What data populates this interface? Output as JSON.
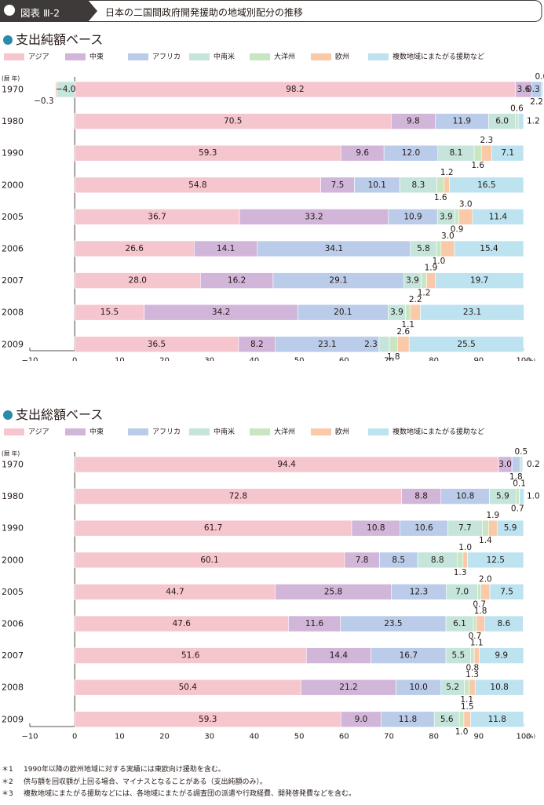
{
  "header": {
    "label": "図表 Ⅲ-2",
    "title": "日本の二国間政府開発援助の地域別配分の推移"
  },
  "colors": {
    "header_bg": "#3e3a39",
    "section_dot": "#2a8aa8",
    "series": [
      "#f6c6cf",
      "#d2b6d9",
      "#bacce9",
      "#c5e5dc",
      "#c9e6c3",
      "#f9c9a8",
      "#bde3f0"
    ]
  },
  "chart_data": [
    {
      "type": "bar",
      "orientation": "horizontal",
      "stacked": true,
      "title": "支出純額ベース",
      "ylabel": "(暦 年)",
      "xunit": "(%)",
      "xlim": [
        -10,
        100
      ],
      "xticks": [
        -10,
        0,
        10,
        20,
        30,
        40,
        50,
        60,
        70,
        80,
        90,
        100
      ],
      "legend_position": "top",
      "categories": [
        "1970",
        "1980",
        "1990",
        "2000",
        "2005",
        "2006",
        "2007",
        "2008",
        "2009"
      ],
      "series": [
        {
          "name": "アジア",
          "values": [
            98.2,
            70.5,
            59.3,
            54.8,
            36.7,
            26.6,
            28.0,
            15.5,
            36.5
          ]
        },
        {
          "name": "中東",
          "values": [
            3.6,
            9.8,
            9.6,
            7.5,
            33.2,
            14.1,
            16.2,
            34.2,
            8.2
          ]
        },
        {
          "name": "アフリカ",
          "values": [
            2.2,
            11.9,
            12.0,
            10.1,
            10.9,
            34.1,
            29.1,
            20.1,
            23.1
          ]
        },
        {
          "name": "中南米",
          "values": [
            -4.0,
            6.0,
            8.1,
            8.3,
            3.9,
            5.8,
            3.9,
            3.9,
            2.3
          ]
        },
        {
          "name": "大洋州",
          "values": [
            0.0,
            0.6,
            1.6,
            1.6,
            0.9,
            1.0,
            1.2,
            1.1,
            1.8
          ]
        },
        {
          "name": "欧州",
          "values": [
            -0.3,
            0,
            2.3,
            1.2,
            3.0,
            3.0,
            1.9,
            2.2,
            2.6
          ]
        },
        {
          "name": "複数地域にまたがる援助など",
          "values": [
            0.3,
            1.2,
            7.1,
            16.5,
            11.4,
            15.4,
            19.7,
            23.1,
            25.5
          ]
        }
      ],
      "labels": [
        [
          {
            "s": 3,
            "text": "−4.0",
            "pos": "in"
          },
          {
            "s": 0,
            "text": "98.2",
            "pos": "in"
          },
          {
            "s": 1,
            "text": "3.6",
            "pos": "in"
          },
          {
            "s": 4,
            "text": "0.0",
            "pos": "above"
          },
          {
            "s": 2,
            "text": "2.2",
            "pos": "below"
          },
          {
            "s": 6,
            "text": "0.3",
            "pos": "right"
          },
          {
            "s": 5,
            "text": "−0.3",
            "pos": "below-left"
          }
        ],
        [
          {
            "s": 0,
            "text": "70.5",
            "pos": "in"
          },
          {
            "s": 1,
            "text": "9.8",
            "pos": "in"
          },
          {
            "s": 2,
            "text": "11.9",
            "pos": "in"
          },
          {
            "s": 3,
            "text": "6.0",
            "pos": "in"
          },
          {
            "s": 4,
            "text": "0.6",
            "pos": "above"
          },
          {
            "s": 6,
            "text": "1.2",
            "pos": "right"
          }
        ],
        [
          {
            "s": 0,
            "text": "59.3",
            "pos": "in"
          },
          {
            "s": 1,
            "text": "9.6",
            "pos": "in"
          },
          {
            "s": 2,
            "text": "12.0",
            "pos": "in"
          },
          {
            "s": 3,
            "text": "8.1",
            "pos": "in"
          },
          {
            "s": 5,
            "text": "2.3",
            "pos": "above"
          },
          {
            "s": 4,
            "text": "1.6",
            "pos": "below"
          },
          {
            "s": 6,
            "text": "7.1",
            "pos": "in"
          }
        ],
        [
          {
            "s": 0,
            "text": "54.8",
            "pos": "in"
          },
          {
            "s": 1,
            "text": "7.5",
            "pos": "in"
          },
          {
            "s": 2,
            "text": "10.1",
            "pos": "in"
          },
          {
            "s": 3,
            "text": "8.3",
            "pos": "in"
          },
          {
            "s": 5,
            "text": "1.2",
            "pos": "above"
          },
          {
            "s": 4,
            "text": "1.6",
            "pos": "below"
          },
          {
            "s": 6,
            "text": "16.5",
            "pos": "in"
          }
        ],
        [
          {
            "s": 0,
            "text": "36.7",
            "pos": "in"
          },
          {
            "s": 1,
            "text": "33.2",
            "pos": "in"
          },
          {
            "s": 2,
            "text": "10.9",
            "pos": "in"
          },
          {
            "s": 3,
            "text": "3.9",
            "pos": "in"
          },
          {
            "s": 5,
            "text": "3.0",
            "pos": "above"
          },
          {
            "s": 4,
            "text": "0.9",
            "pos": "below"
          },
          {
            "s": 6,
            "text": "11.4",
            "pos": "in"
          }
        ],
        [
          {
            "s": 0,
            "text": "26.6",
            "pos": "in"
          },
          {
            "s": 1,
            "text": "14.1",
            "pos": "in"
          },
          {
            "s": 2,
            "text": "34.1",
            "pos": "in"
          },
          {
            "s": 3,
            "text": "5.8",
            "pos": "in"
          },
          {
            "s": 5,
            "text": "3.0",
            "pos": "above"
          },
          {
            "s": 4,
            "text": "1.0",
            "pos": "below"
          },
          {
            "s": 6,
            "text": "15.4",
            "pos": "in"
          }
        ],
        [
          {
            "s": 0,
            "text": "28.0",
            "pos": "in"
          },
          {
            "s": 1,
            "text": "16.2",
            "pos": "in"
          },
          {
            "s": 2,
            "text": "29.1",
            "pos": "in"
          },
          {
            "s": 3,
            "text": "3.9",
            "pos": "in"
          },
          {
            "s": 5,
            "text": "1.9",
            "pos": "above"
          },
          {
            "s": 4,
            "text": "1.2",
            "pos": "below"
          },
          {
            "s": 6,
            "text": "19.7",
            "pos": "in"
          }
        ],
        [
          {
            "s": 0,
            "text": "15.5",
            "pos": "in"
          },
          {
            "s": 1,
            "text": "34.2",
            "pos": "in"
          },
          {
            "s": 2,
            "text": "20.1",
            "pos": "in"
          },
          {
            "s": 3,
            "text": "3.9",
            "pos": "in"
          },
          {
            "s": 5,
            "text": "2.2",
            "pos": "above"
          },
          {
            "s": 4,
            "text": "1.1",
            "pos": "below"
          },
          {
            "s": 6,
            "text": "23.1",
            "pos": "in"
          }
        ],
        [
          {
            "s": 0,
            "text": "36.5",
            "pos": "in"
          },
          {
            "s": 1,
            "text": "8.2",
            "pos": "in"
          },
          {
            "s": 2,
            "text": "23.1",
            "pos": "in"
          },
          {
            "s": 3,
            "text": "2.3",
            "pos": "in-left"
          },
          {
            "s": 5,
            "text": "2.6",
            "pos": "above"
          },
          {
            "s": 4,
            "text": "1.8",
            "pos": "below"
          },
          {
            "s": 6,
            "text": "25.5",
            "pos": "in"
          }
        ]
      ]
    },
    {
      "type": "bar",
      "orientation": "horizontal",
      "stacked": true,
      "title": "支出総額ベース",
      "ylabel": "(暦 年)",
      "xunit": "(%)",
      "xlim": [
        -10,
        100
      ],
      "xticks": [
        -10,
        0,
        10,
        20,
        30,
        40,
        50,
        60,
        70,
        80,
        90,
        100
      ],
      "legend_position": "top",
      "categories": [
        "1970",
        "1980",
        "1990",
        "2000",
        "2005",
        "2006",
        "2007",
        "2008",
        "2009"
      ],
      "series": [
        {
          "name": "アジア",
          "values": [
            94.4,
            72.8,
            61.7,
            60.1,
            44.7,
            47.6,
            51.6,
            50.4,
            59.3
          ]
        },
        {
          "name": "中東",
          "values": [
            3.0,
            8.8,
            10.8,
            7.8,
            25.8,
            11.6,
            14.4,
            21.2,
            9.0
          ]
        },
        {
          "name": "アフリカ",
          "values": [
            1.8,
            10.8,
            10.6,
            8.5,
            12.3,
            23.5,
            16.7,
            10.0,
            11.8
          ]
        },
        {
          "name": "中南米",
          "values": [
            0.5,
            5.9,
            7.7,
            8.8,
            7.0,
            6.1,
            5.5,
            5.2,
            5.6
          ]
        },
        {
          "name": "大洋州",
          "values": [
            0,
            0.7,
            1.4,
            1.3,
            0.7,
            0.7,
            0.8,
            1.1,
            1.0
          ]
        },
        {
          "name": "欧州",
          "values": [
            0,
            0.1,
            1.9,
            1.0,
            2.0,
            1.8,
            1.1,
            1.3,
            1.5
          ]
        },
        {
          "name": "複数地域にまたがる援助など",
          "values": [
            0.2,
            1.0,
            5.9,
            12.5,
            7.5,
            8.6,
            9.9,
            10.8,
            11.8
          ]
        }
      ],
      "labels": [
        [
          {
            "s": 0,
            "text": "94.4",
            "pos": "in"
          },
          {
            "s": 1,
            "text": "3.0",
            "pos": "in"
          },
          {
            "s": 3,
            "text": "0.5",
            "pos": "above"
          },
          {
            "s": 2,
            "text": "1.8",
            "pos": "below"
          },
          {
            "s": 6,
            "text": "0.2",
            "pos": "right"
          }
        ],
        [
          {
            "s": 0,
            "text": "72.8",
            "pos": "in"
          },
          {
            "s": 1,
            "text": "8.8",
            "pos": "in"
          },
          {
            "s": 2,
            "text": "10.8",
            "pos": "in"
          },
          {
            "s": 3,
            "text": "5.9",
            "pos": "in"
          },
          {
            "s": 5,
            "text": "0.1",
            "pos": "above"
          },
          {
            "s": 4,
            "text": "0.7",
            "pos": "below"
          },
          {
            "s": 6,
            "text": "1.0",
            "pos": "right"
          }
        ],
        [
          {
            "s": 0,
            "text": "61.7",
            "pos": "in"
          },
          {
            "s": 1,
            "text": "10.8",
            "pos": "in"
          },
          {
            "s": 2,
            "text": "10.6",
            "pos": "in"
          },
          {
            "s": 3,
            "text": "7.7",
            "pos": "in"
          },
          {
            "s": 5,
            "text": "1.9",
            "pos": "above"
          },
          {
            "s": 4,
            "text": "1.4",
            "pos": "below"
          },
          {
            "s": 6,
            "text": "5.9",
            "pos": "in"
          }
        ],
        [
          {
            "s": 0,
            "text": "60.1",
            "pos": "in"
          },
          {
            "s": 1,
            "text": "7.8",
            "pos": "in"
          },
          {
            "s": 2,
            "text": "8.5",
            "pos": "in"
          },
          {
            "s": 3,
            "text": "8.8",
            "pos": "in"
          },
          {
            "s": 5,
            "text": "1.0",
            "pos": "above"
          },
          {
            "s": 4,
            "text": "1.3",
            "pos": "below"
          },
          {
            "s": 6,
            "text": "12.5",
            "pos": "in"
          }
        ],
        [
          {
            "s": 0,
            "text": "44.7",
            "pos": "in"
          },
          {
            "s": 1,
            "text": "25.8",
            "pos": "in"
          },
          {
            "s": 2,
            "text": "12.3",
            "pos": "in"
          },
          {
            "s": 3,
            "text": "7.0",
            "pos": "in"
          },
          {
            "s": 5,
            "text": "2.0",
            "pos": "above"
          },
          {
            "s": 4,
            "text": "0.7",
            "pos": "below"
          },
          {
            "s": 6,
            "text": "7.5",
            "pos": "in"
          }
        ],
        [
          {
            "s": 0,
            "text": "47.6",
            "pos": "in"
          },
          {
            "s": 1,
            "text": "11.6",
            "pos": "in"
          },
          {
            "s": 2,
            "text": "23.5",
            "pos": "in"
          },
          {
            "s": 3,
            "text": "6.1",
            "pos": "in"
          },
          {
            "s": 5,
            "text": "1.8",
            "pos": "above"
          },
          {
            "s": 4,
            "text": "0.7",
            "pos": "below"
          },
          {
            "s": 6,
            "text": "8.6",
            "pos": "in"
          }
        ],
        [
          {
            "s": 0,
            "text": "51.6",
            "pos": "in"
          },
          {
            "s": 1,
            "text": "14.4",
            "pos": "in"
          },
          {
            "s": 2,
            "text": "16.7",
            "pos": "in"
          },
          {
            "s": 3,
            "text": "5.5",
            "pos": "in"
          },
          {
            "s": 5,
            "text": "1.1",
            "pos": "above"
          },
          {
            "s": 4,
            "text": "0.8",
            "pos": "below"
          },
          {
            "s": 6,
            "text": "9.9",
            "pos": "in"
          }
        ],
        [
          {
            "s": 0,
            "text": "50.4",
            "pos": "in"
          },
          {
            "s": 1,
            "text": "21.2",
            "pos": "in"
          },
          {
            "s": 2,
            "text": "10.0",
            "pos": "in"
          },
          {
            "s": 3,
            "text": "5.2",
            "pos": "in"
          },
          {
            "s": 5,
            "text": "1.3",
            "pos": "above"
          },
          {
            "s": 4,
            "text": "1.1",
            "pos": "below"
          },
          {
            "s": 6,
            "text": "10.8",
            "pos": "in"
          }
        ],
        [
          {
            "s": 0,
            "text": "59.3",
            "pos": "in"
          },
          {
            "s": 1,
            "text": "9.0",
            "pos": "in"
          },
          {
            "s": 2,
            "text": "11.8",
            "pos": "in"
          },
          {
            "s": 3,
            "text": "5.6",
            "pos": "in"
          },
          {
            "s": 5,
            "text": "1.5",
            "pos": "above"
          },
          {
            "s": 4,
            "text": "1.0",
            "pos": "below"
          },
          {
            "s": 6,
            "text": "11.8",
            "pos": "in"
          }
        ]
      ]
    }
  ],
  "notes": [
    {
      "mark": "＊1",
      "text": "1990年以降の欧州地域に対する実績には東欧向け援助を含む。"
    },
    {
      "mark": "＊2",
      "text": "供与額を回収額が上回る場合、マイナスとなることがある（支出純額のみ）。"
    },
    {
      "mark": "＊3",
      "text": "複数地域にまたがる援助などには、各地域にまたがる調査団の派遣や行政経費、開発啓発費などを含む。"
    }
  ]
}
